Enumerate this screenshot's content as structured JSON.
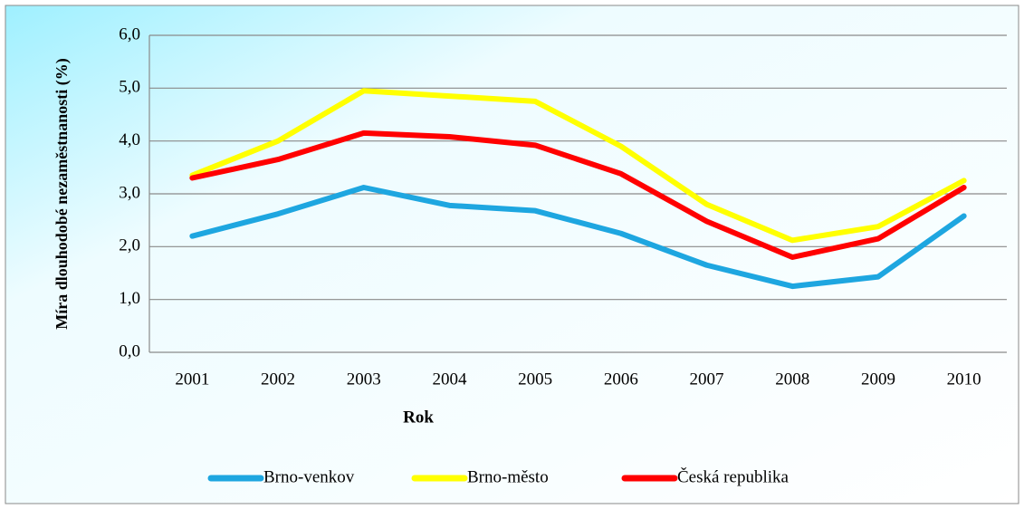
{
  "chart_data": {
    "type": "line",
    "x_label": "Rok",
    "y_label": "Míra dlouhodobé nezaměstnanosti (%)",
    "categories": [
      "2001",
      "2002",
      "2003",
      "2004",
      "2005",
      "2006",
      "2007",
      "2008",
      "2009",
      "2010"
    ],
    "series": [
      {
        "name": "Brno-venkov",
        "color": "#1ea6e0",
        "values": [
          2.2,
          2.62,
          3.12,
          2.78,
          2.68,
          2.25,
          1.65,
          1.25,
          1.43,
          2.58
        ]
      },
      {
        "name": "Brno-město",
        "color": "#ffff00",
        "values": [
          3.35,
          4.0,
          4.95,
          4.85,
          4.75,
          3.9,
          2.8,
          2.12,
          2.38,
          3.25
        ]
      },
      {
        "name": "Česká republika",
        "color": "#ff0000",
        "values": [
          3.3,
          3.65,
          4.15,
          4.08,
          3.92,
          3.38,
          2.48,
          1.8,
          2.15,
          3.12
        ]
      }
    ],
    "ylim": [
      0,
      6
    ],
    "yticks": [
      {
        "value": 0,
        "label": "0,0"
      },
      {
        "value": 1,
        "label": "1,0"
      },
      {
        "value": 2,
        "label": "2,0"
      },
      {
        "value": 3,
        "label": "3,0"
      },
      {
        "value": 4,
        "label": "4,0"
      },
      {
        "value": 5,
        "label": "5,0"
      },
      {
        "value": 6,
        "label": "6,0"
      }
    ],
    "grid": true,
    "legend": "bottom"
  }
}
